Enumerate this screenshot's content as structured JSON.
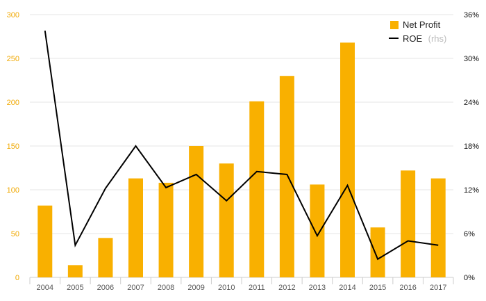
{
  "chart_data": {
    "type": "bar",
    "categories": [
      "2004",
      "2005",
      "2006",
      "2007",
      "2008",
      "2009",
      "2010",
      "2011",
      "2012",
      "2013",
      "2014",
      "2015",
      "2016",
      "2017"
    ],
    "series": [
      {
        "name": "Net Profit",
        "type": "bar",
        "axis": "left",
        "values": [
          82,
          14,
          45,
          113,
          108,
          150,
          130,
          201,
          230,
          106,
          268,
          57,
          122,
          113
        ]
      },
      {
        "name": "ROE",
        "type": "line",
        "axis": "right",
        "values": [
          33.8,
          4.4,
          12.2,
          18.0,
          12.3,
          14.1,
          10.5,
          14.5,
          14.1,
          5.7,
          12.6,
          2.5,
          5.0,
          4.4
        ]
      }
    ],
    "y_left": {
      "ylim": [
        0,
        300
      ],
      "ticks": [
        "0",
        "50",
        "100",
        "150",
        "200",
        "250",
        "300"
      ]
    },
    "y_right": {
      "ylim": [
        0,
        36
      ],
      "ticks": [
        "0%",
        "6%",
        "12%",
        "18%",
        "24%",
        "30%",
        "36%"
      ]
    },
    "legend": {
      "position": "top-right",
      "items": [
        {
          "label": "Net Profit",
          "suffix": ""
        },
        {
          "label": "ROE",
          "suffix": "(rhs)"
        }
      ]
    },
    "grid": true,
    "colors": {
      "bar": "#f9b000",
      "line": "#000000",
      "left_axis": "#f0a800",
      "grid": "#e6e6e6"
    }
  }
}
